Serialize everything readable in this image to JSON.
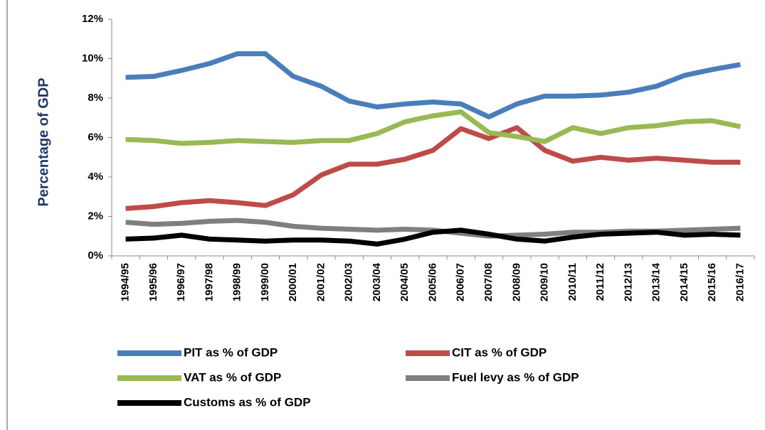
{
  "chart_data": {
    "type": "line",
    "y_label": "Percentage of GDP",
    "categories": [
      "1994/95",
      "1995/96",
      "1996/97",
      "1997/98",
      "1998/99",
      "1999/00",
      "2000/01",
      "2001/02",
      "2002/03",
      "2003/04",
      "2004/05",
      "2005/06",
      "2006/07",
      "2007/08",
      "2008/09",
      "2009/10",
      "2010/11",
      "2011/12",
      "2012/13",
      "2013/14",
      "2014/15",
      "2015/16",
      "2016/17"
    ],
    "series": [
      {
        "name": "PIT as % of GDP",
        "color": "#4a7ebb",
        "values": [
          9.05,
          9.1,
          9.4,
          9.75,
          10.25,
          10.25,
          9.1,
          8.6,
          7.85,
          7.55,
          7.7,
          7.8,
          7.7,
          7.05,
          7.7,
          8.1,
          8.1,
          8.15,
          8.3,
          8.6,
          9.15,
          9.45,
          9.7
        ]
      },
      {
        "name": "CIT as % of GDP",
        "color": "#be4b48",
        "values": [
          2.4,
          2.5,
          2.7,
          2.8,
          2.7,
          2.55,
          3.1,
          4.1,
          4.65,
          4.65,
          4.9,
          5.35,
          6.45,
          5.95,
          6.5,
          5.35,
          4.8,
          5.0,
          4.85,
          4.95,
          4.85,
          4.75,
          4.75
        ]
      },
      {
        "name": "VAT as % of GDP",
        "color": "#98b954",
        "values": [
          5.9,
          5.85,
          5.7,
          5.75,
          5.85,
          5.8,
          5.75,
          5.85,
          5.85,
          6.2,
          6.8,
          7.1,
          7.3,
          6.25,
          6.05,
          5.8,
          6.5,
          6.2,
          6.5,
          6.6,
          6.8,
          6.85,
          6.55
        ]
      },
      {
        "name": "Fuel levy as % of GDP",
        "color": "#7f7f7f",
        "values": [
          1.7,
          1.6,
          1.65,
          1.75,
          1.8,
          1.7,
          1.5,
          1.4,
          1.35,
          1.3,
          1.35,
          1.3,
          1.15,
          1.0,
          1.05,
          1.1,
          1.2,
          1.2,
          1.25,
          1.25,
          1.3,
          1.35,
          1.4
        ]
      },
      {
        "name": "Customs as % of GDP",
        "color": "#000000",
        "values": [
          0.85,
          0.9,
          1.05,
          0.85,
          0.8,
          0.75,
          0.8,
          0.8,
          0.75,
          0.6,
          0.85,
          1.2,
          1.3,
          1.1,
          0.85,
          0.75,
          0.95,
          1.1,
          1.15,
          1.2,
          1.05,
          1.1,
          1.05
        ]
      }
    ],
    "ylim": [
      0,
      12
    ],
    "yticks": [
      {
        "value": 0,
        "label": "0%"
      },
      {
        "value": 2,
        "label": "2%"
      },
      {
        "value": 4,
        "label": "4%"
      },
      {
        "value": 6,
        "label": "6%"
      },
      {
        "value": 8,
        "label": "8%"
      },
      {
        "value": 10,
        "label": "10%"
      },
      {
        "value": 12,
        "label": "12%"
      }
    ],
    "legend": "bottom"
  }
}
